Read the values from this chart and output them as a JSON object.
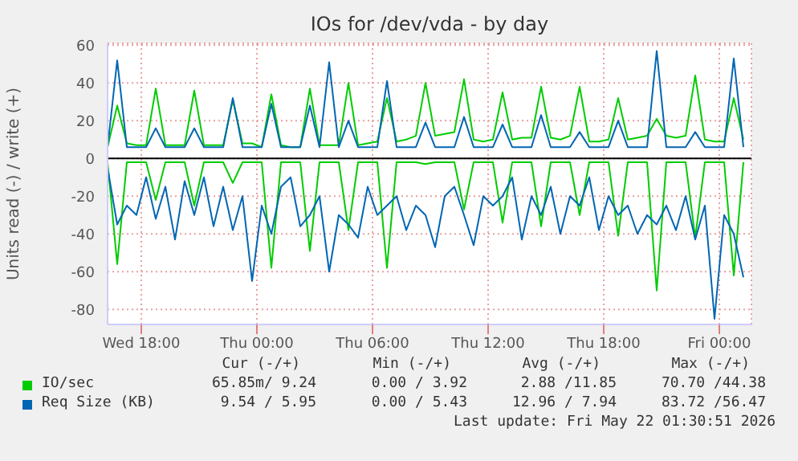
{
  "chart_data": {
    "type": "line",
    "title": "IOs for /dev/vda - by day",
    "ylabel": "Units read (-) / write (+)",
    "x": [
      "2026-05-20T16:15",
      "2026-05-20T16:45",
      "2026-05-20T17:15",
      "2026-05-20T17:45",
      "2026-05-20T18:15",
      "2026-05-20T18:45",
      "2026-05-20T19:15",
      "2026-05-20T19:45",
      "2026-05-20T20:15",
      "2026-05-20T20:45",
      "2026-05-20T21:15",
      "2026-05-20T21:45",
      "2026-05-20T22:15",
      "2026-05-20T22:45",
      "2026-05-20T23:15",
      "2026-05-20T23:45",
      "2026-05-21T00:15",
      "2026-05-21T00:45",
      "2026-05-21T01:15",
      "2026-05-21T01:45",
      "2026-05-21T02:15",
      "2026-05-21T02:45",
      "2026-05-21T03:15",
      "2026-05-21T03:45",
      "2026-05-21T04:15",
      "2026-05-21T04:45",
      "2026-05-21T05:15",
      "2026-05-21T05:45",
      "2026-05-21T06:15",
      "2026-05-21T06:45",
      "2026-05-21T07:15",
      "2026-05-21T07:45",
      "2026-05-21T08:15",
      "2026-05-21T08:45",
      "2026-05-21T09:15",
      "2026-05-21T09:45",
      "2026-05-21T10:15",
      "2026-05-21T10:45",
      "2026-05-21T11:15",
      "2026-05-21T11:45",
      "2026-05-21T12:15",
      "2026-05-21T12:45",
      "2026-05-21T13:15",
      "2026-05-21T13:45",
      "2026-05-21T14:15",
      "2026-05-21T14:45",
      "2026-05-21T15:15",
      "2026-05-21T15:45",
      "2026-05-21T16:15",
      "2026-05-21T16:45",
      "2026-05-21T17:15",
      "2026-05-21T17:45",
      "2026-05-21T18:15",
      "2026-05-21T18:45",
      "2026-05-21T19:15",
      "2026-05-21T19:45",
      "2026-05-21T20:15",
      "2026-05-21T20:45",
      "2026-05-21T21:15",
      "2026-05-21T21:45",
      "2026-05-21T22:15",
      "2026-05-21T22:45",
      "2026-05-21T23:15",
      "2026-05-21T23:45",
      "2026-05-22T00:15",
      "2026-05-22T00:45",
      "2026-05-22T01:15"
    ],
    "series": [
      {
        "color": "#00cc00",
        "values": [
          -2,
          -56,
          -2,
          -2,
          -2,
          -22,
          -2,
          -2,
          -2,
          -25,
          -2,
          -2,
          -2,
          -13,
          -2,
          -2,
          -2,
          -58,
          -2,
          -2,
          -2,
          -49,
          -2,
          -2,
          -2,
          -38,
          -2,
          -2,
          -2,
          -58,
          -2,
          -2,
          -2,
          -3,
          -2,
          -2,
          -2,
          -27,
          -2,
          -2,
          -2,
          -34,
          -2,
          -2,
          -2,
          -36,
          -2,
          -2,
          -2,
          -30,
          -2,
          -2,
          -2,
          -41,
          -2,
          -2,
          -2,
          -70,
          -2,
          -2,
          -2,
          -42,
          -2,
          -2,
          -2,
          -62,
          -2
        ]
      },
      {
        "name": "IO/sec",
        "color": "#00cc00",
        "values": [
          6,
          28,
          8,
          7,
          7,
          37,
          7,
          7,
          7,
          36,
          7,
          7,
          7,
          31,
          8,
          8,
          6,
          34,
          7,
          6,
          6,
          37,
          7,
          7,
          7,
          40,
          7,
          8,
          9,
          32,
          9,
          10,
          12,
          40,
          12,
          13,
          14,
          42,
          10,
          9,
          10,
          35,
          10,
          11,
          11,
          38,
          11,
          10,
          12,
          38,
          9,
          9,
          10,
          32,
          10,
          11,
          12,
          21,
          12,
          11,
          12,
          44,
          10,
          9,
          9,
          32,
          10
        ]
      },
      {
        "color": "#0066b3",
        "values": [
          -5,
          -35,
          -25,
          -30,
          -10,
          -32,
          -15,
          -43,
          -12,
          -30,
          -10,
          -36,
          -15,
          -38,
          -20,
          -65,
          -25,
          -40,
          -15,
          -10,
          -36,
          -30,
          -20,
          -60,
          -30,
          -35,
          -42,
          -15,
          -30,
          -25,
          -20,
          -38,
          -25,
          -30,
          -47,
          -20,
          -15,
          -30,
          -46,
          -20,
          -25,
          -20,
          -10,
          -43,
          -20,
          -30,
          -15,
          -40,
          -20,
          -25,
          -10,
          -38,
          -20,
          -30,
          -25,
          -40,
          -30,
          -35,
          -25,
          -38,
          -20,
          -43,
          -25,
          -85,
          -30,
          -40,
          -63
        ]
      },
      {
        "name": "Req Size (KB)",
        "color": "#0066b3",
        "values": [
          6,
          52,
          6,
          6,
          6,
          16,
          6,
          6,
          6,
          16,
          6,
          6,
          6,
          32,
          6,
          6,
          6,
          29,
          6,
          6,
          6,
          28,
          6,
          51,
          6,
          20,
          6,
          6,
          6,
          41,
          6,
          6,
          6,
          19,
          6,
          6,
          6,
          22,
          6,
          6,
          6,
          18,
          6,
          6,
          6,
          23,
          6,
          6,
          6,
          14,
          6,
          6,
          6,
          20,
          6,
          6,
          6,
          57,
          6,
          6,
          6,
          14,
          6,
          6,
          6,
          53,
          6
        ]
      }
    ],
    "xlim": [
      "2026-05-20T16:15",
      "2026-05-22T01:40"
    ],
    "xticks": [
      {
        "value": "2026-05-20T18:00",
        "label": "Wed 18:00"
      },
      {
        "value": "2026-05-21T00:00",
        "label": "Thu 00:00"
      },
      {
        "value": "2026-05-21T06:00",
        "label": "Thu 06:00"
      },
      {
        "value": "2026-05-21T12:00",
        "label": "Thu 12:00"
      },
      {
        "value": "2026-05-21T18:00",
        "label": "Thu 18:00"
      },
      {
        "value": "2026-05-22T00:00",
        "label": "Fri 00:00"
      }
    ],
    "ylim": [
      -88,
      61
    ],
    "yticks": [
      -80,
      -60,
      -40,
      -20,
      0,
      20,
      40,
      60
    ],
    "ref_lines": [
      {
        "axis": "y",
        "value": 0,
        "color": "#000000"
      }
    ],
    "grid": true,
    "legend": "bottom",
    "annotations": [
      "Cur (-/+)",
      "Min (-/+)",
      "Avg (-/+)",
      "Max (-/+)",
      "65.85m/ 9.24",
      "0.00 / 3.92",
      "2.88 /11.85",
      "70.70 /44.38",
      "9.54 / 5.95",
      "0.00 / 5.43",
      "12.96 / 7.94",
      "83.72 /56.47",
      "Last update: Fri May 22 01:30:51 2026"
    ]
  }
}
